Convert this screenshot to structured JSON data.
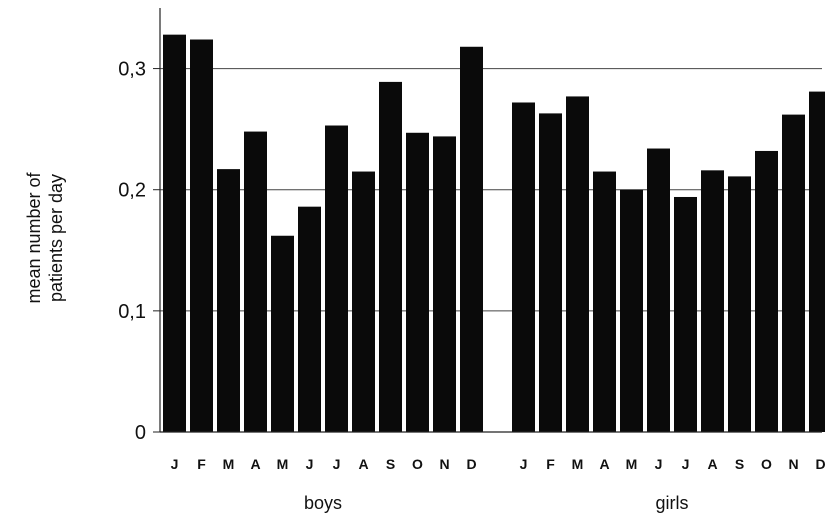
{
  "chart_data": {
    "type": "bar",
    "ylabel_lines": [
      "mean number of",
      "patients per day"
    ],
    "ylim": [
      0,
      0.35
    ],
    "yticks": [
      {
        "value": 0,
        "label": "0"
      },
      {
        "value": 0.1,
        "label": "0,1"
      },
      {
        "value": 0.2,
        "label": "0,2"
      },
      {
        "value": 0.3,
        "label": "0,3"
      }
    ],
    "grid": true,
    "bar_color": "#0a0a0a",
    "groups": [
      {
        "label": "boys",
        "categories": [
          "J",
          "F",
          "M",
          "A",
          "M",
          "J",
          "J",
          "A",
          "S",
          "O",
          "N",
          "D"
        ],
        "values": [
          0.328,
          0.324,
          0.217,
          0.248,
          0.162,
          0.186,
          0.253,
          0.215,
          0.289,
          0.247,
          0.244,
          0.318
        ]
      },
      {
        "label": "girls",
        "categories": [
          "J",
          "F",
          "M",
          "A",
          "M",
          "J",
          "J",
          "A",
          "S",
          "O",
          "N",
          "D"
        ],
        "values": [
          0.272,
          0.263,
          0.277,
          0.215,
          0.2,
          0.234,
          0.194,
          0.216,
          0.211,
          0.232,
          0.262,
          0.281
        ]
      }
    ]
  }
}
